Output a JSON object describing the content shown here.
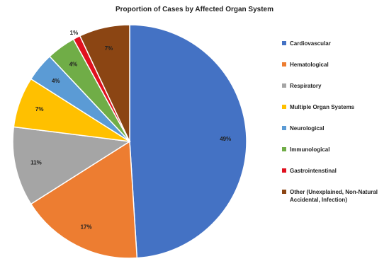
{
  "chart_data": {
    "type": "pie",
    "title": "Proportion of Cases by Affected Organ System",
    "slices": [
      {
        "label": "Cardiovascular",
        "value": 49,
        "display": "49%",
        "color": "#4472C4"
      },
      {
        "label": "Hematological",
        "value": 17,
        "display": "17%",
        "color": "#ED7D31"
      },
      {
        "label": "Respiratory",
        "value": 11,
        "display": "11%",
        "color": "#A5A5A5"
      },
      {
        "label": "Multiple Organ Systems",
        "value": 7,
        "display": "7%",
        "color": "#FFC000"
      },
      {
        "label": "Neurological",
        "value": 4,
        "display": "4%",
        "color": "#5B9BD5"
      },
      {
        "label": "Immunological",
        "value": 4,
        "display": "4%",
        "color": "#70AD47"
      },
      {
        "label": "Gastrointenstinal",
        "value": 1,
        "display": "1%",
        "color": "#E0101E"
      },
      {
        "label": "Other (Unexplained, Non-Natural Accidental, Infection)",
        "value": 7,
        "display": "7%",
        "color": "#8B4513"
      }
    ],
    "legend_position": "right"
  }
}
